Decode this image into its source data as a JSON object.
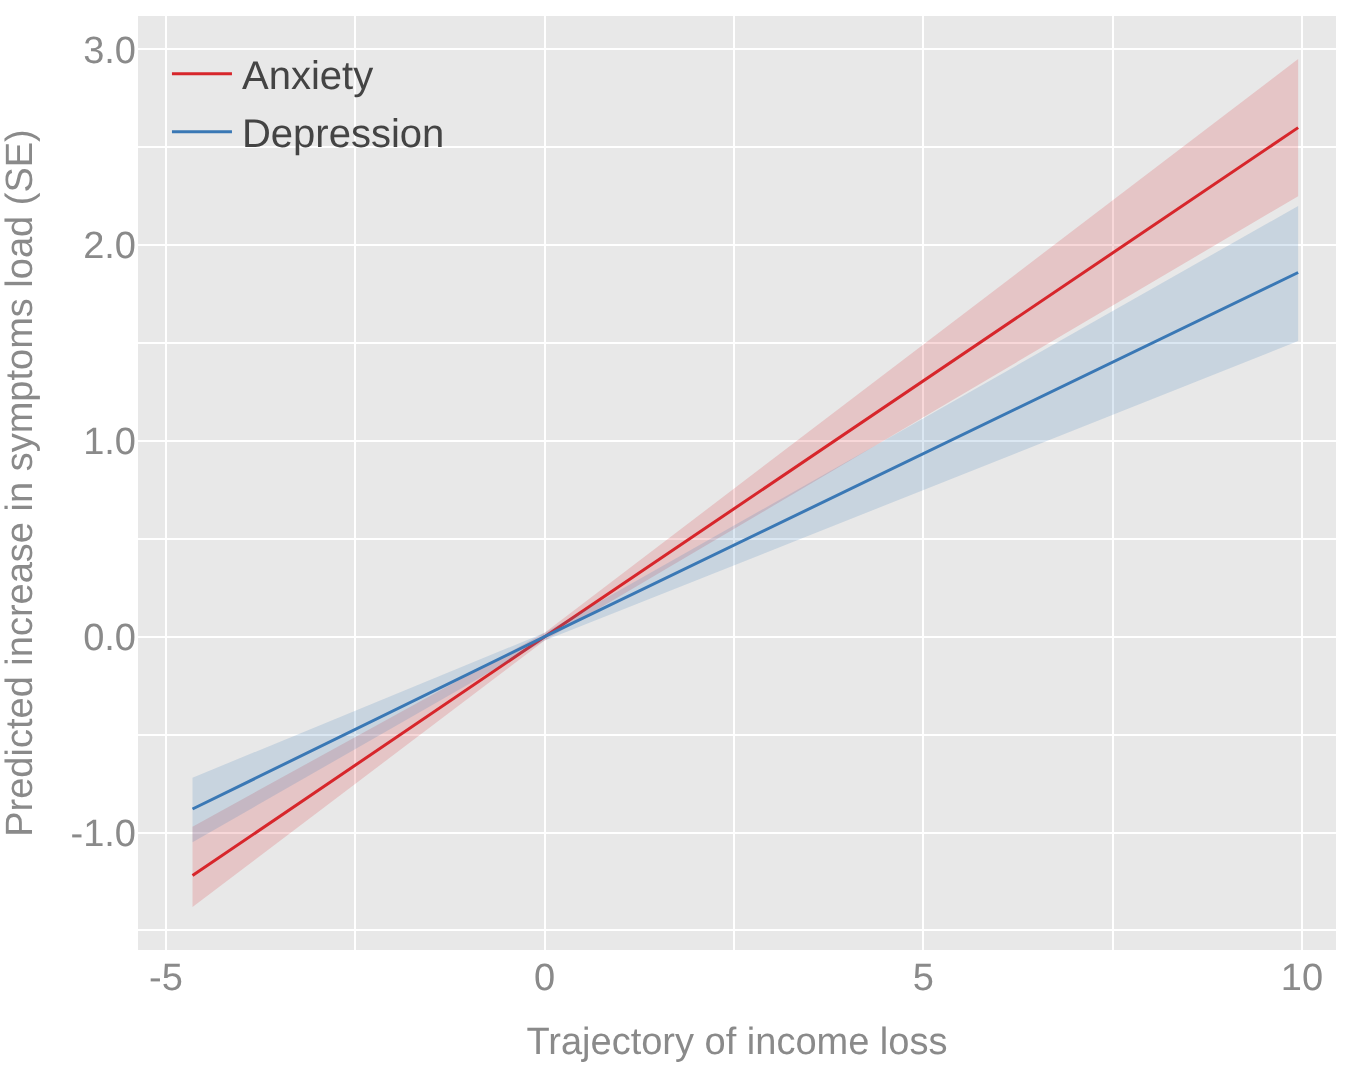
{
  "chart_data": {
    "type": "line",
    "xlabel": "Trajectory of income loss",
    "ylabel": "Predicted increase in symptoms load (SE)",
    "x": [
      -4.65,
      0,
      9.95
    ],
    "series": [
      {
        "name": "Anxiety",
        "color": "#d7262b",
        "values": [
          -1.22,
          0,
          2.6
        ],
        "lower": [
          -1.38,
          -0.02,
          2.25
        ],
        "upper": [
          -0.97,
          0.02,
          2.95
        ]
      },
      {
        "name": "Depression",
        "color": "#3a78b5",
        "values": [
          -0.88,
          0,
          1.86
        ],
        "lower": [
          -1.05,
          -0.02,
          1.51
        ],
        "upper": [
          -0.72,
          0.02,
          2.2
        ]
      }
    ],
    "xlim": [
      -5.37,
      10.45
    ],
    "ylim": [
      -1.6,
      3.17
    ],
    "xticks": [
      -5,
      {
        "value": -2.5,
        "label": null
      },
      0,
      {
        "value": 2.5,
        "label": null
      },
      5,
      {
        "value": 7.5,
        "label": null
      },
      10
    ],
    "yticks": [
      {
        "value": -1.5,
        "label": null
      },
      {
        "value": -1,
        "label": "-1.0"
      },
      {
        "value": -0.5,
        "label": null
      },
      {
        "value": 0,
        "label": "0.0"
      },
      {
        "value": 0.5,
        "label": null
      },
      {
        "value": 1,
        "label": "1.0"
      },
      {
        "value": 1.5,
        "label": null
      },
      {
        "value": 2,
        "label": "2.0"
      },
      {
        "value": 2.5,
        "label": null
      },
      {
        "value": 3,
        "label": "3.0"
      }
    ],
    "grid": true,
    "legend": "top left",
    "line_style": "solid"
  }
}
